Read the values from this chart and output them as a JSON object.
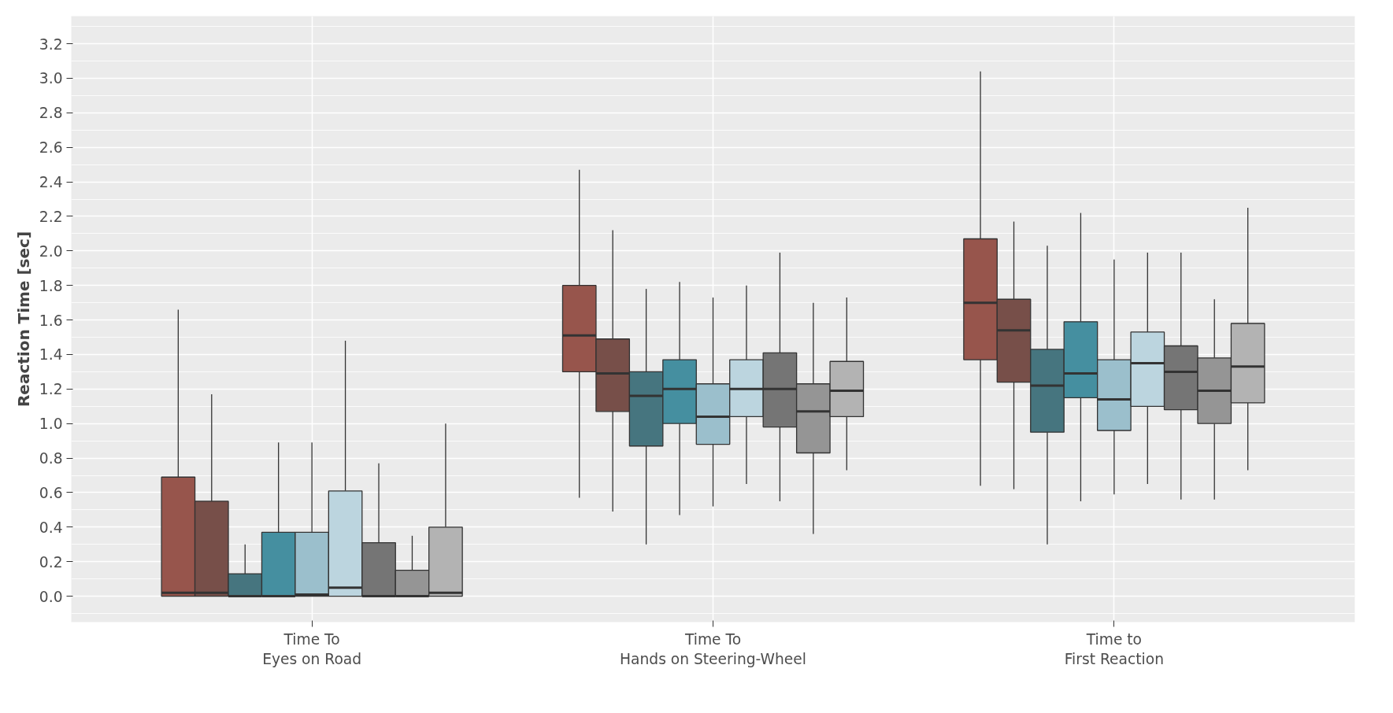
{
  "chart_data": {
    "type": "box",
    "ylabel": "Reaction Time [sec]",
    "categories": [
      "Time To\nEyes on Road",
      "Time To\nHands on Steering-Wheel",
      "Time to\nFirst Reaction"
    ],
    "ylim": [
      -0.15,
      3.36
    ],
    "yticks": [
      {
        "value": 0,
        "label": "0.0"
      },
      0.2,
      0.4,
      0.6,
      0.8,
      {
        "value": 1,
        "label": "1.0"
      },
      1.2,
      1.4,
      1.6,
      1.8,
      {
        "value": 2,
        "label": "2.0"
      },
      2.2,
      2.4,
      2.6,
      2.8,
      {
        "value": 3,
        "label": "3.0"
      },
      3.2
    ],
    "grid": true,
    "series": [
      {
        "color": "#97554c",
        "boxes": [
          {
            "low": 0,
            "q1": 0,
            "median": 0.02,
            "q3": 0.69,
            "high": 1.66
          },
          {
            "low": 0.57,
            "q1": 1.3,
            "median": 1.51,
            "q3": 1.8,
            "high": 2.47
          },
          {
            "low": 0.64,
            "q1": 1.37,
            "median": 1.7,
            "q3": 2.07,
            "high": 3.04
          }
        ]
      },
      {
        "color": "#774f49",
        "boxes": [
          {
            "low": 0,
            "q1": 0,
            "median": 0.02,
            "q3": 0.55,
            "high": 1.17
          },
          {
            "low": 0.49,
            "q1": 1.07,
            "median": 1.29,
            "q3": 1.49,
            "high": 2.12
          },
          {
            "low": 0.62,
            "q1": 1.24,
            "median": 1.54,
            "q3": 1.72,
            "high": 2.17
          }
        ]
      },
      {
        "color": "#46757f",
        "boxes": [
          {
            "low": 0,
            "q1": 0,
            "median": 0.0,
            "q3": 0.13,
            "high": 0.3
          },
          {
            "low": 0.3,
            "q1": 0.87,
            "median": 1.16,
            "q3": 1.3,
            "high": 1.78
          },
          {
            "low": 0.3,
            "q1": 0.95,
            "median": 1.22,
            "q3": 1.43,
            "high": 2.03
          }
        ]
      },
      {
        "color": "#458fa0",
        "boxes": [
          {
            "low": 0,
            "q1": 0,
            "median": 0.0,
            "q3": 0.37,
            "high": 0.89
          },
          {
            "low": 0.47,
            "q1": 1.0,
            "median": 1.2,
            "q3": 1.37,
            "high": 1.82
          },
          {
            "low": 0.55,
            "q1": 1.15,
            "median": 1.29,
            "q3": 1.59,
            "high": 2.22
          }
        ]
      },
      {
        "color": "#9bbfcc",
        "boxes": [
          {
            "low": 0,
            "q1": 0,
            "median": 0.01,
            "q3": 0.37,
            "high": 0.89
          },
          {
            "low": 0.52,
            "q1": 0.88,
            "median": 1.04,
            "q3": 1.23,
            "high": 1.73
          },
          {
            "low": 0.59,
            "q1": 0.96,
            "median": 1.14,
            "q3": 1.37,
            "high": 1.95
          }
        ]
      },
      {
        "color": "#bcd5df",
        "boxes": [
          {
            "low": 0,
            "q1": 0,
            "median": 0.05,
            "q3": 0.61,
            "high": 1.48
          },
          {
            "low": 0.65,
            "q1": 1.04,
            "median": 1.2,
            "q3": 1.37,
            "high": 1.8
          },
          {
            "low": 0.65,
            "q1": 1.1,
            "median": 1.35,
            "q3": 1.53,
            "high": 1.99
          }
        ]
      },
      {
        "color": "#757575",
        "boxes": [
          {
            "low": 0,
            "q1": 0,
            "median": 0.0,
            "q3": 0.31,
            "high": 0.77
          },
          {
            "low": 0.55,
            "q1": 0.98,
            "median": 1.2,
            "q3": 1.41,
            "high": 1.99
          },
          {
            "low": 0.56,
            "q1": 1.08,
            "median": 1.3,
            "q3": 1.45,
            "high": 1.99
          }
        ]
      },
      {
        "color": "#959595",
        "boxes": [
          {
            "low": 0,
            "q1": 0,
            "median": 0.0,
            "q3": 0.15,
            "high": 0.35
          },
          {
            "low": 0.36,
            "q1": 0.83,
            "median": 1.07,
            "q3": 1.23,
            "high": 1.7
          },
          {
            "low": 0.56,
            "q1": 1.0,
            "median": 1.19,
            "q3": 1.38,
            "high": 1.72
          }
        ]
      },
      {
        "color": "#b3b3b3",
        "boxes": [
          {
            "low": 0,
            "q1": 0,
            "median": 0.02,
            "q3": 0.4,
            "high": 1.0
          },
          {
            "low": 0.73,
            "q1": 1.04,
            "median": 1.19,
            "q3": 1.36,
            "high": 1.73
          },
          {
            "low": 0.73,
            "q1": 1.12,
            "median": 1.33,
            "q3": 1.58,
            "high": 2.25
          }
        ]
      }
    ]
  }
}
